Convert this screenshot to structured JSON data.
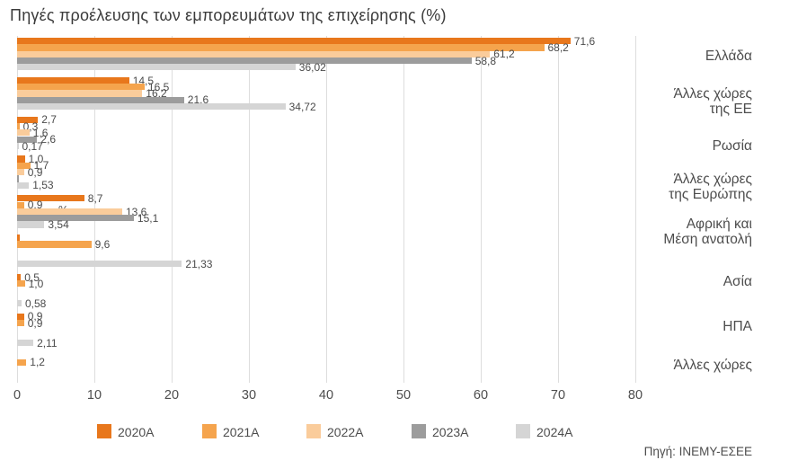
{
  "title": "Πηγές προέλευσης των εμπορευμάτων της επιχείρησης (%)",
  "source_note": "Πηγή: ΙΝΕΜΥ-ΕΣΕΕ",
  "stray_percent_label": "%",
  "axis": {
    "tick_labels": [
      "0",
      "10",
      "20",
      "30",
      "40",
      "50",
      "60",
      "70",
      "80"
    ],
    "tick_values": [
      0,
      10,
      20,
      30,
      40,
      50,
      60,
      70,
      80
    ],
    "max_value": 80.5,
    "grid": true
  },
  "legend": [
    {
      "label": "2020A",
      "color": "#E8771C"
    },
    {
      "label": "2021A",
      "color": "#F5A44D"
    },
    {
      "label": "2022A",
      "color": "#FACC9B"
    },
    {
      "label": "2023A",
      "color": "#9C9C9C"
    },
    {
      "label": "2024A",
      "color": "#D5D5D5"
    }
  ],
  "category_labels": [
    {
      "lines": [
        "Ελλάδα"
      ]
    },
    {
      "lines": [
        "Άλλες χώρες",
        "της ΕΕ"
      ]
    },
    {
      "lines": [
        "Ρωσία"
      ]
    },
    {
      "lines": [
        "Άλλες χώρες",
        "της Ευρώπης"
      ]
    },
    {
      "lines": [
        "Αφρική και",
        "Μέση ανατολή"
      ]
    },
    {
      "lines": [
        "Ασία"
      ]
    },
    {
      "lines": [
        "ΗΠΑ"
      ]
    },
    {
      "lines": [
        "Άλλες χώρες"
      ]
    }
  ],
  "chart_data": {
    "type": "bar",
    "orientation": "horizontal",
    "value_unit": "%",
    "title": "Πηγές προέλευσης των εμπορευμάτων της επιχείρησης (%)",
    "series_names": [
      "2020A",
      "2021A",
      "2022A",
      "2023A",
      "2024A"
    ],
    "xlim": [
      0,
      80.5
    ],
    "legend_position": "bottom",
    "rows": [
      {
        "category": "Ελλάδα",
        "values": [
          71.6,
          68.2,
          61.2,
          58.8,
          36.02
        ],
        "labels": [
          "71,6",
          "68,2",
          "61,2",
          "58,8",
          "36,02"
        ]
      },
      {
        "category": "Άλλες χώρες της ΕΕ",
        "values": [
          14.5,
          16.5,
          16.2,
          21.6,
          34.72
        ],
        "labels": [
          "14,5",
          "16,5",
          "16,2",
          "21,6",
          "34,72"
        ]
      },
      {
        "category": "Ρωσία",
        "values": [
          2.7,
          0.3,
          1.6,
          2.6,
          0.17
        ],
        "labels": [
          "2,7",
          "0,3",
          "1,6",
          "2,6",
          "0,17"
        ]
      },
      {
        "category": "Άλλες χώρες της Ευρώπης",
        "values": [
          1.0,
          1.7,
          0.9,
          0.2,
          1.53
        ],
        "labels": [
          "1,0",
          "1,7",
          "0,9",
          null,
          "1,53"
        ]
      },
      {
        "category": "Αφρική και Μέση ανατολή",
        "values": [
          8.7,
          0.9,
          13.6,
          15.1,
          3.54
        ],
        "labels": [
          "8,7",
          "0,9",
          "13,6",
          "15,1",
          "3,54"
        ]
      },
      {
        "category": "Ασία",
        "values": [
          0.4,
          9.6,
          null,
          null,
          21.33
        ],
        "labels": [
          null,
          "9,6",
          null,
          null,
          "21,33"
        ]
      },
      {
        "category": "ΗΠΑ",
        "values": [
          0.5,
          1.0,
          null,
          null,
          0.58
        ],
        "labels": [
          "0,5",
          "1,0",
          null,
          null,
          "0,58"
        ]
      },
      {
        "category": "Άλλες χώρες",
        "values": [
          0.9,
          0.9,
          null,
          null,
          2.11
        ],
        "labels": [
          "0,9",
          "0,9",
          null,
          null,
          "2,11"
        ]
      },
      {
        "category": "",
        "values": [
          null,
          1.2,
          null,
          null,
          null
        ],
        "labels": [
          null,
          "1,2",
          null,
          null,
          null
        ]
      }
    ]
  }
}
